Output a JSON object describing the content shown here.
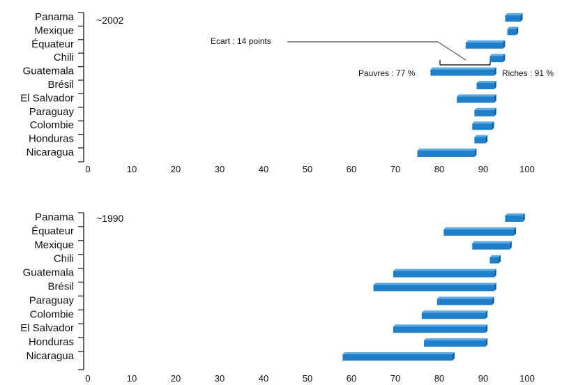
{
  "chart_data": [
    {
      "type": "bar",
      "period_label": "~2002",
      "categories": [
        "Panama",
        "Mexique",
        "Équateur",
        "Chili",
        "Guatemala",
        "Brésil",
        "El Salvador",
        "Paraguay",
        "Colombie",
        "Honduras",
        "Nicaragua"
      ],
      "ranges": [
        [
          95,
          98.5
        ],
        [
          95.5,
          97.5
        ],
        [
          86,
          94.5
        ],
        [
          91.5,
          94.5
        ],
        [
          78,
          92.5
        ],
        [
          88.5,
          92.5
        ],
        [
          84,
          92.5
        ],
        [
          88,
          92.5
        ],
        [
          87.5,
          92
        ],
        [
          88,
          90.5
        ],
        [
          75,
          88
        ]
      ],
      "xlim": [
        0,
        100
      ],
      "xticks": [
        "0",
        "10",
        "20",
        "30",
        "40",
        "50",
        "60",
        "70",
        "80",
        "90",
        "100"
      ],
      "annotations": {
        "gap": "Ecart : 14 points",
        "poor": "Pauvres : 77 %",
        "rich": "Riches : 91 %"
      }
    },
    {
      "type": "bar",
      "period_label": "~1990",
      "categories": [
        "Panama",
        "Équateur",
        "Mexique",
        "Chili",
        "Guatemala",
        "Brésil",
        "Paraguay",
        "Colombie",
        "El Salvador",
        "Honduras",
        "Nicaragua"
      ],
      "ranges": [
        [
          95,
          99
        ],
        [
          81,
          97
        ],
        [
          87.5,
          96
        ],
        [
          91.5,
          93.5
        ],
        [
          69.5,
          92.5
        ],
        [
          65,
          92.5
        ],
        [
          79.5,
          92
        ],
        [
          76,
          90.5
        ],
        [
          69.5,
          90.5
        ],
        [
          76.5,
          90.5
        ],
        [
          58,
          83
        ]
      ],
      "xlim": [
        0,
        100
      ],
      "xticks": [
        "0",
        "10",
        "20",
        "30",
        "40",
        "50",
        "60",
        "70",
        "80",
        "90",
        "100"
      ]
    }
  ],
  "colors": {
    "bar": "#1f7fcb",
    "bar_dark": "#0f5e9e",
    "bar_top": "#5aaae6",
    "axis": "#222222"
  }
}
